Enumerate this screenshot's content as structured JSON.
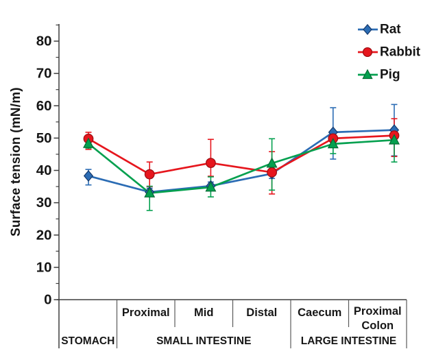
{
  "chart_data": {
    "type": "line",
    "title": "",
    "ylabel": "Surface tension (mN/m)",
    "xlabel": "",
    "ylim": [
      0,
      85
    ],
    "yticks_major": [
      0,
      10,
      20,
      30,
      40,
      50,
      60,
      70,
      80
    ],
    "ytick_minor_step": 5,
    "grid": false,
    "legend_position": "top-right",
    "units": "mN/m",
    "categories": [
      "Stomach",
      "Small intestine - Proximal",
      "Small intestine - Mid",
      "Small intestine - Distal",
      "Large intestine - Caecum",
      "Large intestine - Proximal Colon"
    ],
    "xtick_labels": [
      [],
      [
        "Proximal"
      ],
      [
        "Mid"
      ],
      [
        "Distal"
      ],
      [
        "Caecum"
      ],
      [
        "Proximal",
        "Colon"
      ]
    ],
    "groups": [
      {
        "label": "STOMACH",
        "start": 0,
        "end": 1
      },
      {
        "label": "SMALL INTESTINE",
        "start": 1,
        "end": 4
      },
      {
        "label": "LARGE INTESTINE",
        "start": 4,
        "end": 6
      }
    ],
    "series": [
      {
        "name": "Rat",
        "marker": "diamond",
        "color": "#2b6cb4",
        "marker_stroke": "#15396b",
        "values": [
          38.3,
          33.3,
          35.2,
          39.0,
          51.8,
          52.5
        ],
        "err_up": [
          2.0,
          1.2,
          1.2,
          1.5,
          7.6,
          7.9
        ],
        "err_down": [
          2.8,
          1.2,
          1.2,
          1.5,
          8.3,
          8.0
        ]
      },
      {
        "name": "Rabbit",
        "marker": "circle",
        "color": "#e6161d",
        "marker_stroke": "#9b0d12",
        "values": [
          49.8,
          38.8,
          42.3,
          39.4,
          49.9,
          50.8
        ],
        "err_up": [
          2.0,
          3.8,
          7.3,
          6.4,
          1.5,
          5.2
        ],
        "err_down": [
          3.3,
          3.8,
          4.1,
          6.7,
          1.5,
          6.5
        ]
      },
      {
        "name": "Pig",
        "marker": "triangle",
        "color": "#04a04f",
        "marker_stroke": "#046b33",
        "values": [
          48.3,
          33.0,
          34.8,
          42.2,
          48.2,
          49.4
        ],
        "err_up": [
          1.4,
          2.1,
          3.2,
          7.6,
          3.0,
          1.4
        ],
        "err_down": [
          1.4,
          5.4,
          3.0,
          8.3,
          3.0,
          6.8
        ]
      }
    ]
  },
  "axis": {
    "text_color": "#161616",
    "line_color": "#3d3d3d",
    "divider_color": "#5a5a5a"
  }
}
